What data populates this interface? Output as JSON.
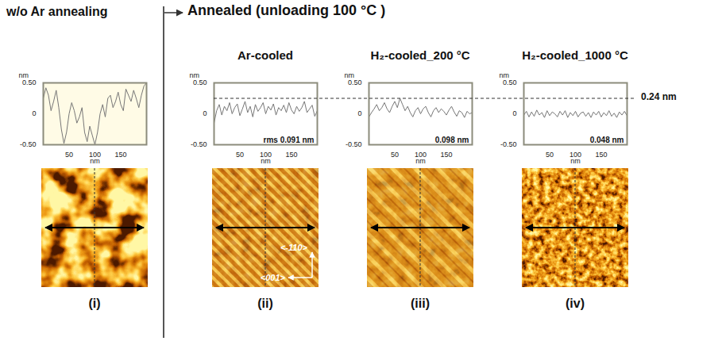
{
  "header": {
    "left": "w/o Ar annealing",
    "right": "Annealed (unloading 100 °C )"
  },
  "reference_line": {
    "value": 0.24,
    "label": "0.24 nm",
    "panels": [
      "(ii)",
      "(iii)",
      "(iv)"
    ]
  },
  "chart_data": [
    {
      "type": "line",
      "panel": "(i)",
      "xlabel": "nm",
      "ylabel": "nm",
      "color": "#777777",
      "grid": false,
      "xlim": [
        0,
        200
      ],
      "xticks": [
        50,
        100,
        150
      ],
      "ylim": [
        -0.5,
        0.5
      ],
      "yticks": [
        {
          "value": -0.5,
          "label": "-0.50"
        },
        0,
        {
          "value": 0.5,
          "label": "0.50"
        }
      ],
      "x": [
        0,
        5,
        10,
        15,
        20,
        25,
        30,
        35,
        40,
        45,
        50,
        55,
        60,
        65,
        70,
        75,
        80,
        85,
        90,
        95,
        100,
        105,
        110,
        115,
        120,
        125,
        130,
        135,
        140,
        145,
        150,
        155,
        160,
        165,
        170,
        175,
        180,
        185,
        190,
        195,
        200
      ],
      "values": [
        0.25,
        0.42,
        0.3,
        0.05,
        0.2,
        0.38,
        0.1,
        -0.25,
        -0.48,
        -0.3,
        0.0,
        0.18,
        0.05,
        -0.15,
        -0.05,
        0.1,
        -0.3,
        -0.45,
        -0.2,
        -0.35,
        -0.5,
        -0.3,
        0.0,
        0.15,
        -0.05,
        0.25,
        0.3,
        0.1,
        0.2,
        0.35,
        0.15,
        0.05,
        0.4,
        0.3,
        0.2,
        0.38,
        0.25,
        0.1,
        0.3,
        0.45,
        0.5
      ]
    },
    {
      "type": "line",
      "panel": "(ii)",
      "title": "Ar-cooled",
      "annotation": "rms 0.091 nm",
      "image_labels": [
        "<-110>",
        "<001>"
      ],
      "xlabel": "nm",
      "ylabel": "nm",
      "color": "#777777",
      "grid": false,
      "xlim": [
        0,
        200
      ],
      "xticks": [
        50,
        100,
        150
      ],
      "ylim": [
        -0.5,
        0.5
      ],
      "yticks": [
        {
          "value": -0.5,
          "label": "-0.50"
        },
        0,
        {
          "value": 0.5,
          "label": "0.50"
        }
      ],
      "x": [
        0,
        5,
        10,
        15,
        20,
        25,
        30,
        35,
        40,
        45,
        50,
        55,
        60,
        65,
        70,
        75,
        80,
        85,
        90,
        95,
        100,
        105,
        110,
        115,
        120,
        125,
        130,
        135,
        140,
        145,
        150,
        155,
        160,
        165,
        170,
        175,
        180,
        185,
        190,
        195,
        200
      ],
      "values": [
        -0.15,
        0.05,
        0.15,
        -0.02,
        0.12,
        0.05,
        0.18,
        0.0,
        0.1,
        0.16,
        -0.03,
        0.08,
        0.2,
        0.02,
        0.12,
        -0.05,
        0.15,
        0.04,
        0.1,
        0.18,
        0.0,
        0.12,
        0.06,
        0.16,
        -0.02,
        0.1,
        0.05,
        0.14,
        0.02,
        0.18,
        0.06,
        0.0,
        0.12,
        0.04,
        0.1,
        0.2,
        0.02,
        0.08,
        0.14,
        -0.04,
        0.05
      ]
    },
    {
      "type": "line",
      "panel": "(iii)",
      "title": "H₂-cooled_200 °C",
      "annotation": "0.098 nm",
      "xlabel": "nm",
      "ylabel": "nm",
      "color": "#777777",
      "grid": false,
      "xlim": [
        0,
        200
      ],
      "xticks": [
        50,
        100,
        150
      ],
      "ylim": [
        -0.5,
        0.5
      ],
      "yticks": [
        {
          "value": -0.5,
          "label": "-0.50"
        },
        0,
        {
          "value": 0.5,
          "label": "0.50"
        }
      ],
      "x": [
        0,
        5,
        10,
        15,
        20,
        25,
        30,
        35,
        40,
        45,
        50,
        55,
        60,
        65,
        70,
        75,
        80,
        85,
        90,
        95,
        100,
        105,
        110,
        115,
        120,
        125,
        130,
        135,
        140,
        145,
        150,
        155,
        160,
        165,
        170,
        175,
        180,
        185,
        190,
        195,
        200
      ],
      "values": [
        -0.05,
        0.02,
        0.08,
        0.15,
        0.05,
        0.1,
        0.18,
        0.08,
        0.02,
        0.12,
        0.2,
        0.1,
        0.25,
        0.15,
        0.05,
        0.12,
        0.02,
        -0.05,
        0.05,
        0.1,
        0.0,
        0.08,
        0.12,
        0.02,
        -0.05,
        0.05,
        0.1,
        0.02,
        0.08,
        0.04,
        -0.02,
        0.06,
        0.12,
        0.03,
        -0.04,
        0.05,
        0.02,
        -0.06,
        0.04,
        0.0,
        0.02
      ]
    },
    {
      "type": "line",
      "panel": "(iv)",
      "title": "H₂-cooled_1000 °C",
      "annotation": "0.048 nm",
      "xlabel": "nm",
      "ylabel": "nm",
      "color": "#777777",
      "grid": false,
      "xlim": [
        0,
        200
      ],
      "xticks": [
        50,
        100,
        150
      ],
      "ylim": [
        -0.5,
        0.5
      ],
      "yticks": [
        {
          "value": -0.5,
          "label": "-0.50"
        },
        0,
        {
          "value": 0.5,
          "label": "0.50"
        }
      ],
      "x": [
        0,
        5,
        10,
        15,
        20,
        25,
        30,
        35,
        40,
        45,
        50,
        55,
        60,
        65,
        70,
        75,
        80,
        85,
        90,
        95,
        100,
        105,
        110,
        115,
        120,
        125,
        130,
        135,
        140,
        145,
        150,
        155,
        160,
        165,
        170,
        175,
        180,
        185,
        190,
        195,
        200
      ],
      "values": [
        -0.02,
        0.04,
        -0.05,
        0.03,
        -0.04,
        0.06,
        -0.02,
        0.02,
        -0.06,
        0.05,
        -0.03,
        0.03,
        0.0,
        -0.05,
        0.04,
        -0.02,
        0.05,
        -0.06,
        0.02,
        -0.03,
        0.04,
        -0.05,
        0.01,
        0.03,
        -0.04,
        0.02,
        -0.06,
        0.03,
        -0.02,
        0.04,
        -0.05,
        0.02,
        -0.03,
        0.05,
        -0.04,
        0.01,
        -0.06,
        0.03,
        -0.02,
        0.04,
        -0.03
      ]
    }
  ]
}
